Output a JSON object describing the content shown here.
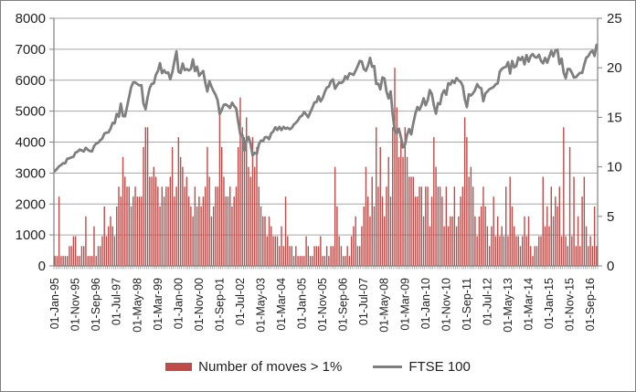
{
  "chart_data": {
    "type": "combo",
    "title": "",
    "x_start": "Jan-1995",
    "x_frequency": "monthly",
    "x_tick_every_n_months": 10,
    "x_tick_labels": [
      "01-Jan-95",
      "01-Nov-95",
      "01-Sep-96",
      "01-Jul-97",
      "01-May-98",
      "01-Mar-99",
      "01-Jan-00",
      "01-Nov-00",
      "01-Sep-01",
      "01-Jul-02",
      "01-May-03",
      "01-Mar-04",
      "01-Jan-05",
      "01-Nov-05",
      "01-Sep-06",
      "01-Jul-07",
      "01-May-08",
      "01-Mar-09",
      "01-Jan-10",
      "01-Nov-10",
      "01-Sep-11",
      "01-Jul-12",
      "01-May-13",
      "01-Mar-14",
      "01-Jan-15",
      "01-Nov-15",
      "01-Sep-16"
    ],
    "axes": {
      "left": {
        "min": 0,
        "max": 8000,
        "step": 1000,
        "tick_labels": [
          0,
          1000,
          2000,
          3000,
          4000,
          5000,
          6000,
          7000,
          8000
        ],
        "series": "FTSE 100"
      },
      "right": {
        "min": 0,
        "max": 25,
        "step": 5,
        "tick_labels": [
          0,
          5,
          10,
          15,
          20,
          25
        ],
        "series": "Number of moves > 1%"
      }
    },
    "grid": "horizontal gridlines at every 1000 of left axis",
    "legend_position": "bottom",
    "colors": {
      "bar": "#BE4B48",
      "line": "#7F7F7F",
      "grid": "#A6A6A6",
      "axis": "#808080",
      "text": "#1F1F1F",
      "figure_border": "#7F7F7F",
      "background": "#FFFFFF"
    },
    "series": [
      {
        "name": "Number of moves > 1%",
        "type": "bar",
        "axis": "right",
        "color": "#BE4B48",
        "values": [
          1,
          1,
          7,
          1,
          1,
          1,
          1,
          2,
          2,
          3,
          3,
          1,
          1,
          2,
          2,
          5,
          1,
          1,
          1,
          4,
          1,
          2,
          2,
          3,
          6,
          3,
          4,
          5,
          4,
          3,
          6,
          8,
          7,
          11,
          9,
          8,
          8,
          6,
          7,
          8,
          7,
          7,
          7,
          12,
          14,
          14,
          9,
          9,
          10,
          9,
          8,
          6,
          8,
          7,
          8,
          8,
          9,
          12,
          7,
          8,
          13,
          11,
          10,
          8,
          9,
          7,
          6,
          5,
          8,
          6,
          7,
          6,
          7,
          8,
          12,
          9,
          5,
          6,
          8,
          8,
          16,
          12,
          9,
          7,
          7,
          8,
          6,
          7,
          8,
          12,
          17,
          14,
          13,
          15,
          10,
          9,
          13,
          10,
          12,
          8,
          6,
          5,
          5,
          3,
          5,
          4,
          3,
          3,
          3,
          2,
          4,
          2,
          7,
          3,
          2,
          2,
          1,
          2,
          1,
          1,
          1,
          1,
          3,
          2,
          1,
          1,
          2,
          2,
          2,
          3,
          1,
          1,
          2,
          1,
          2,
          2,
          10,
          6,
          3,
          2,
          1,
          1,
          2,
          1,
          3,
          4,
          5,
          2,
          2,
          4,
          6,
          10,
          7,
          5,
          9,
          6,
          14,
          8,
          12,
          7,
          5,
          8,
          11,
          7,
          14,
          20,
          16,
          11,
          13,
          11,
          14,
          11,
          9,
          9,
          9,
          7,
          7,
          8,
          8,
          5,
          8,
          8,
          4,
          7,
          13,
          10,
          8,
          8,
          7,
          4,
          8,
          4,
          5,
          5,
          8,
          4,
          5,
          7,
          8,
          15,
          13,
          9,
          10,
          8,
          5,
          3,
          5,
          6,
          8,
          6,
          4,
          2,
          4,
          7,
          3,
          5,
          3,
          4,
          3,
          8,
          3,
          9,
          6,
          4,
          3,
          3,
          2,
          3,
          5,
          3,
          5,
          2,
          1,
          2,
          2,
          3,
          3,
          9,
          4,
          6,
          4,
          8,
          5,
          7,
          6,
          8,
          3,
          14,
          3,
          2,
          12,
          3,
          9,
          2,
          5,
          2,
          7,
          9,
          4,
          2,
          3,
          2,
          6,
          2
        ]
      },
      {
        "name": "FTSE 100",
        "type": "line",
        "axis": "left",
        "color": "#7F7F7F",
        "values": [
          3066,
          3138,
          3218,
          3261,
          3319,
          3315,
          3463,
          3478,
          3508,
          3529,
          3664,
          3689,
          3759,
          3728,
          3700,
          3818,
          3748,
          3711,
          3703,
          3868,
          3954,
          3979,
          4058,
          4119,
          4276,
          4308,
          4313,
          4436,
          4621,
          4605,
          4908,
          4817,
          5244,
          4842,
          4832,
          5136,
          5458,
          5767,
          5932,
          5928,
          5871,
          5833,
          5837,
          5249,
          5064,
          5438,
          5743,
          5883,
          5896,
          6176,
          6295,
          6552,
          6226,
          6319,
          6231,
          6246,
          6030,
          6256,
          6597,
          6930,
          6269,
          6233,
          6540,
          6327,
          6359,
          6313,
          6365,
          6672,
          6294,
          6438,
          6142,
          6222,
          6298,
          5918,
          5634,
          5967,
          5796,
          5643,
          5529,
          5345,
          4903,
          5039,
          5203,
          5217,
          5165,
          5101,
          5272,
          5165,
          5086,
          4656,
          4246,
          4227,
          3722,
          4040,
          4169,
          3940,
          3567,
          3655,
          3613,
          3926,
          4048,
          4031,
          4157,
          4161,
          4091,
          4287,
          4343,
          4477,
          4390,
          4492,
          4386,
          4490,
          4430,
          4464,
          4413,
          4459,
          4571,
          4624,
          4703,
          4814,
          4852,
          4969,
          4894,
          4801,
          4964,
          5113,
          5282,
          5297,
          5478,
          5317,
          5423,
          5619,
          5760,
          5792,
          5965,
          6023,
          5724,
          5833,
          5928,
          5906,
          5961,
          6129,
          6049,
          6221,
          6203,
          6171,
          6308,
          6449,
          6621,
          6608,
          6360,
          6303,
          6467,
          6722,
          6432,
          6457,
          5880,
          5884,
          5702,
          6087,
          6054,
          5626,
          5412,
          5637,
          4902,
          4377,
          4288,
          4434,
          4150,
          3830,
          3926,
          4244,
          4418,
          4249,
          4608,
          4909,
          5134,
          5045,
          5191,
          5413,
          5189,
          5355,
          5680,
          5553,
          5188,
          4917,
          5258,
          5225,
          5549,
          5675,
          5528,
          5900,
          5863,
          5994,
          5909,
          6070,
          5990,
          5946,
          5815,
          5395,
          5128,
          5544,
          5505,
          5572,
          5682,
          5871,
          5768,
          5738,
          5321,
          5571,
          5635,
          5711,
          5742,
          5783,
          5867,
          5898,
          6277,
          6361,
          6412,
          6430,
          6583,
          6215,
          6621,
          6413,
          6462,
          6731,
          6651,
          6749,
          6510,
          6810,
          6598,
          6780,
          6844,
          6744,
          6730,
          6820,
          6623,
          6546,
          6723,
          6566,
          6749,
          6947,
          6773,
          6961,
          6984,
          6521,
          6696,
          6248,
          6062,
          6361,
          6356,
          6242,
          6084,
          6097,
          6175,
          6242,
          6231,
          6504,
          6724,
          6782,
          6899,
          6954,
          6784,
          7143
        ]
      }
    ]
  }
}
